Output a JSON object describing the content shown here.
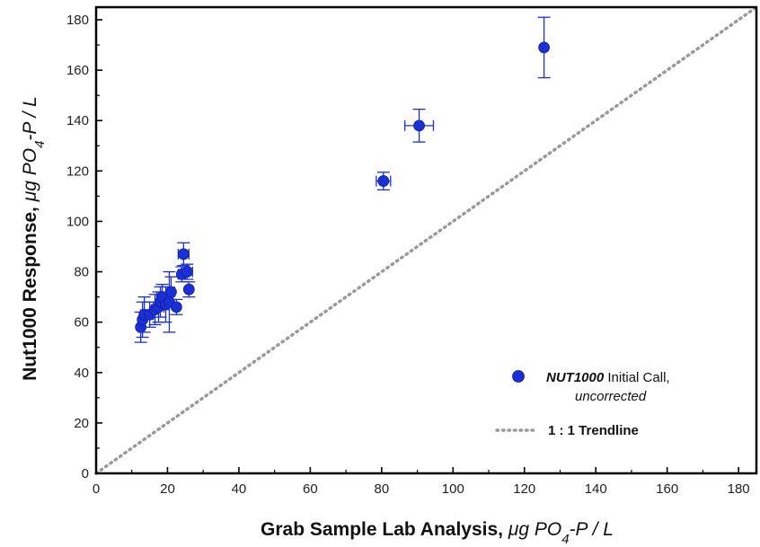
{
  "chart_data": {
    "type": "scatter",
    "x_axis": {
      "label_main": "Grab Sample Lab Analysis, ",
      "label_unit_pre": "μg PO",
      "label_sub": "4",
      "label_unit_post": "-P / L",
      "range": [
        0,
        185
      ],
      "ticks": [
        0,
        20,
        40,
        60,
        80,
        100,
        120,
        140,
        160,
        180
      ]
    },
    "y_axis": {
      "label_main": "Nut1000 Response, ",
      "label_unit_pre": "μg PO",
      "label_sub": "4",
      "label_unit_post": "-P / L",
      "range": [
        0,
        185
      ],
      "ticks": [
        0,
        20,
        40,
        60,
        80,
        100,
        120,
        140,
        160,
        180
      ]
    },
    "grid": false,
    "legend": {
      "position": "bottom-right",
      "series_label_bold_italic": "NUT1000",
      "series_label_rest": " Initial Call,",
      "series_label_line2": "uncorrected",
      "trend_label": "1 : 1 Trendline"
    },
    "series": [
      {
        "color": "#1b2fd6",
        "points": [
          {
            "x": 12.5,
            "y": 58,
            "yerr": 6,
            "xerr": 0
          },
          {
            "x": 13,
            "y": 61,
            "yerr": 7,
            "xerr": 0
          },
          {
            "x": 13.5,
            "y": 63,
            "yerr": 7,
            "xerr": 1
          },
          {
            "x": 15,
            "y": 63,
            "yerr": 5,
            "xerr": 1
          },
          {
            "x": 16.5,
            "y": 65,
            "yerr": 6,
            "xerr": 1
          },
          {
            "x": 17.5,
            "y": 66,
            "yerr": 6,
            "xerr": 1.5
          },
          {
            "x": 18,
            "y": 68,
            "yerr": 6,
            "xerr": 1
          },
          {
            "x": 18.5,
            "y": 70,
            "yerr": 5,
            "xerr": 1.5
          },
          {
            "x": 19.5,
            "y": 67,
            "yerr": 7,
            "xerr": 1
          },
          {
            "x": 20.5,
            "y": 68,
            "yerr": 12,
            "xerr": 1
          },
          {
            "x": 21,
            "y": 72,
            "yerr": 6,
            "xerr": 1
          },
          {
            "x": 22.5,
            "y": 66,
            "yerr": 3,
            "xerr": 0
          },
          {
            "x": 24,
            "y": 79,
            "yerr": 3,
            "xerr": 1
          },
          {
            "x": 24.5,
            "y": 87,
            "yerr": 4.5,
            "xerr": 1.5
          },
          {
            "x": 25.5,
            "y": 80,
            "yerr": 3,
            "xerr": 1.5
          },
          {
            "x": 26,
            "y": 73,
            "yerr": 3,
            "xerr": 0
          },
          {
            "x": 80.5,
            "y": 116,
            "yerr": 3.5,
            "xerr": 2
          },
          {
            "x": 90.5,
            "y": 138,
            "yerr": 6.5,
            "xerr": 4
          },
          {
            "x": 125.5,
            "y": 169,
            "yerr": 12,
            "xerr": 0
          }
        ]
      }
    ],
    "trendline": {
      "style": "dotted",
      "color": "#9a9a9a",
      "slope": 1,
      "intercept": 0
    }
  }
}
